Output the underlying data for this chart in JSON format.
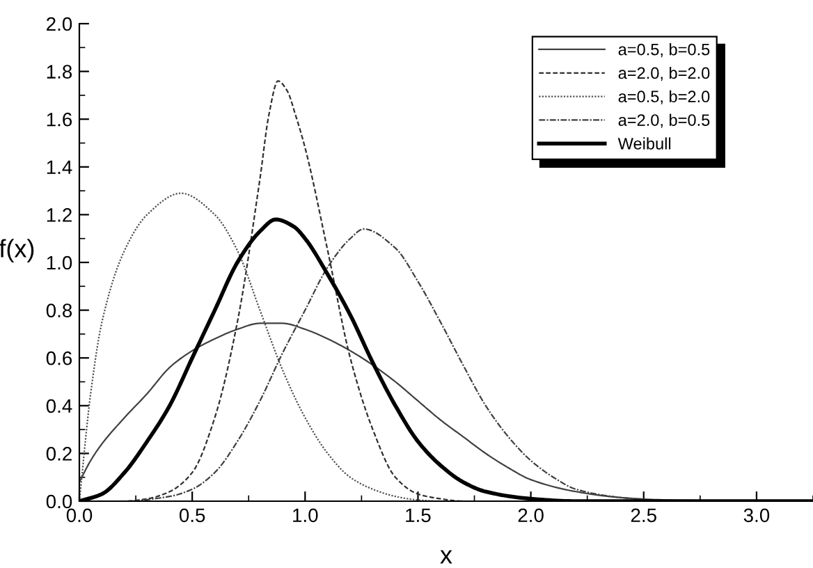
{
  "chart_data": {
    "type": "line",
    "xlabel": "x",
    "ylabel": "f(x)",
    "xlim": [
      0,
      3.25
    ],
    "ylim": [
      0,
      2.0
    ],
    "xticks": [
      "0.0",
      0.5,
      "1.0",
      1.5,
      "2.0",
      2.5,
      "3.0"
    ],
    "yticks": [
      "0.0",
      0.2,
      0.4,
      0.6,
      0.8,
      "1.0",
      1.2,
      1.4,
      1.6,
      1.8,
      "2.0"
    ],
    "grid": false,
    "legend": "top right",
    "marker": "none",
    "series": [
      {
        "name": "a=0.5, b=0.5",
        "color": "#404040",
        "line_style": "solid",
        "x": [
          0,
          0.05,
          0.1,
          0.2,
          0.3,
          0.4,
          0.5,
          0.6,
          0.7,
          0.8,
          0.9,
          1.0,
          1.1,
          1.2,
          1.3,
          1.4,
          1.5,
          1.6,
          1.7,
          1.8,
          1.9,
          2.0,
          2.2,
          2.4,
          2.6,
          3.0,
          3.25
        ],
        "values": [
          0.08,
          0.17,
          0.24,
          0.35,
          0.45,
          0.56,
          0.63,
          0.68,
          0.72,
          0.745,
          0.745,
          0.72,
          0.68,
          0.63,
          0.57,
          0.5,
          0.42,
          0.34,
          0.27,
          0.2,
          0.14,
          0.09,
          0.04,
          0.015,
          0.005,
          0,
          0
        ]
      },
      {
        "name": "a=2.0, b=2.0",
        "color": "#303030",
        "line_style": "dashed",
        "x": [
          0,
          0.2,
          0.3,
          0.4,
          0.5,
          0.6,
          0.7,
          0.8,
          0.84,
          0.88,
          0.92,
          0.96,
          1.0,
          1.1,
          1.2,
          1.3,
          1.4,
          1.5,
          1.6,
          1.7,
          3.25
        ],
        "values": [
          0,
          0,
          0.01,
          0.04,
          0.12,
          0.35,
          0.75,
          1.35,
          1.62,
          1.76,
          1.72,
          1.61,
          1.48,
          1.05,
          0.6,
          0.3,
          0.1,
          0.03,
          0.01,
          0,
          0
        ]
      },
      {
        "name": "a=0.5, b=2.0",
        "color": "#505050",
        "line_style": "dotted",
        "x": [
          0,
          0.05,
          0.1,
          0.2,
          0.3,
          0.45,
          0.6,
          0.7,
          0.8,
          0.9,
          1.0,
          1.1,
          1.2,
          1.3,
          1.4,
          1.5,
          1.6,
          3.25
        ],
        "values": [
          0,
          0.45,
          0.75,
          1.05,
          1.2,
          1.29,
          1.2,
          1.05,
          0.8,
          0.55,
          0.35,
          0.2,
          0.1,
          0.05,
          0.02,
          0.005,
          0,
          0
        ]
      },
      {
        "name": "a=2.0, b=0.5",
        "color": "#404040",
        "line_style": "dashdot",
        "x": [
          0,
          0.2,
          0.4,
          0.5,
          0.6,
          0.7,
          0.8,
          0.9,
          1.0,
          1.1,
          1.2,
          1.26,
          1.4,
          1.5,
          1.6,
          1.7,
          1.8,
          1.9,
          2.0,
          2.1,
          2.2,
          2.4,
          2.6,
          3.25
        ],
        "values": [
          0,
          0,
          0.02,
          0.05,
          0.12,
          0.25,
          0.42,
          0.62,
          0.8,
          0.98,
          1.1,
          1.14,
          1.06,
          0.92,
          0.75,
          0.57,
          0.4,
          0.27,
          0.17,
          0.1,
          0.05,
          0.015,
          0,
          0
        ]
      },
      {
        "name": "Weibull",
        "color": "#000000",
        "line_style": "solid",
        "x": [
          0,
          0.1,
          0.2,
          0.3,
          0.4,
          0.5,
          0.6,
          0.7,
          0.8,
          0.87,
          0.95,
          1.0,
          1.1,
          1.2,
          1.3,
          1.4,
          1.5,
          1.6,
          1.7,
          1.8,
          2.0,
          2.2,
          3.25
        ],
        "values": [
          0,
          0.03,
          0.12,
          0.25,
          0.4,
          0.6,
          0.8,
          1.0,
          1.13,
          1.18,
          1.15,
          1.1,
          0.95,
          0.78,
          0.58,
          0.4,
          0.25,
          0.15,
          0.08,
          0.04,
          0.01,
          0,
          0
        ]
      }
    ]
  }
}
